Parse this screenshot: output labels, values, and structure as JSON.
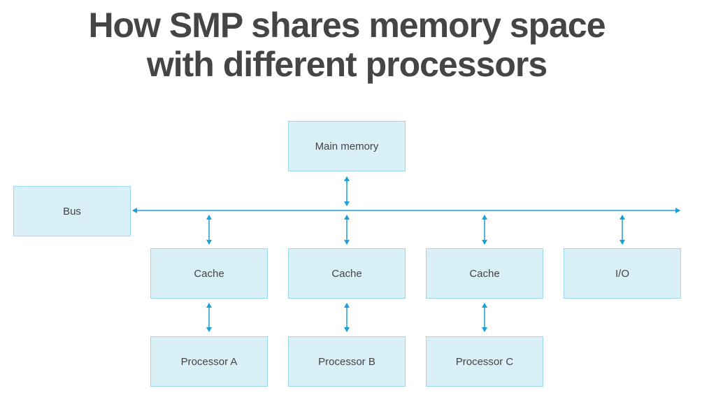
{
  "title": {
    "line1": "How SMP shares memory space",
    "line2": "with different processors"
  },
  "nodes": {
    "main_memory": "Main memory",
    "bus": "Bus",
    "cache_a": "Cache",
    "cache_b": "Cache",
    "cache_c": "Cache",
    "io": "I/O",
    "processor_a": "Processor A",
    "processor_b": "Processor B",
    "processor_c": "Processor C"
  },
  "colors": {
    "box_fill": "#daf0f7",
    "box_border": "#9dd7ea",
    "arrow": "#1a9fd6",
    "text": "#444444"
  }
}
